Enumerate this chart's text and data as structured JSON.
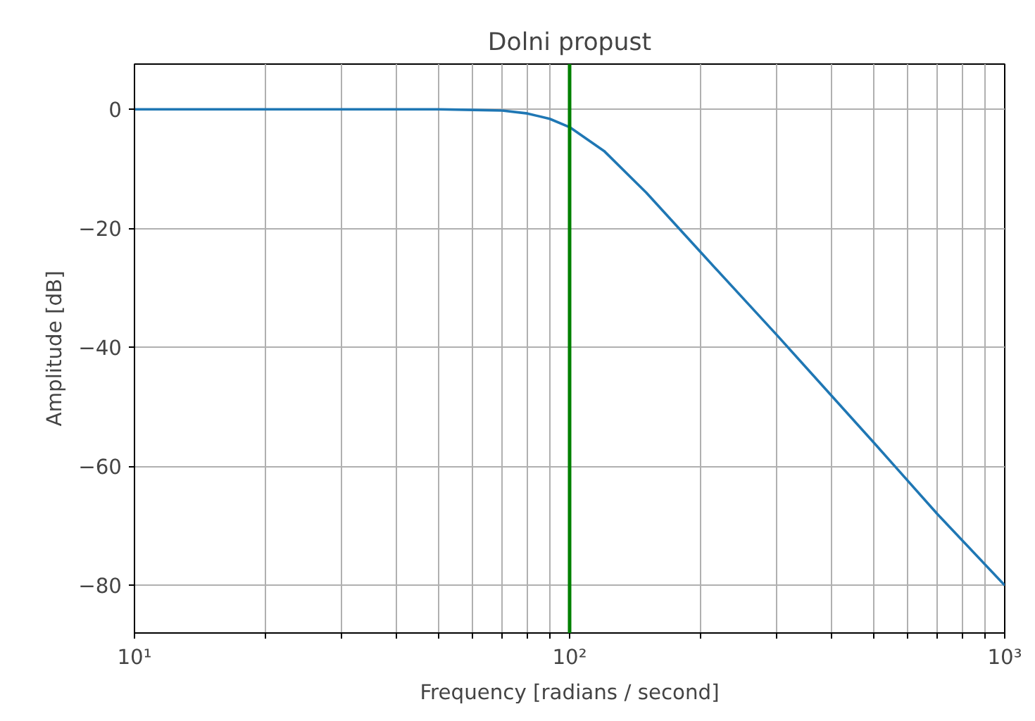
{
  "chart_data": {
    "type": "line",
    "title": "Dolni propust",
    "xlabel": "Frequency [radians / second]",
    "ylabel": "Amplitude [dB]",
    "log": "x",
    "x": [
      10,
      20,
      30,
      40,
      50,
      60,
      70,
      80,
      90,
      100,
      120,
      150,
      200,
      300,
      500,
      700,
      1000
    ],
    "series": [
      {
        "color": "#1f77b4",
        "values": [
          0,
          0,
          0,
          0,
          0,
          -0.1,
          -0.2,
          -0.7,
          -1.6,
          -3,
          -7,
          -14,
          -24,
          -38,
          -56,
          -68,
          -80
        ]
      }
    ],
    "xlim": [
      10,
      1000
    ],
    "ylim": [
      -88,
      7.6
    ],
    "xticks": [
      {
        "value": 10,
        "label": "10¹"
      },
      {
        "value": 20,
        "label": null
      },
      {
        "value": 30,
        "label": null
      },
      {
        "value": 40,
        "label": null
      },
      {
        "value": 50,
        "label": null
      },
      {
        "value": 60,
        "label": null
      },
      {
        "value": 70,
        "label": null
      },
      {
        "value": 80,
        "label": null
      },
      {
        "value": 90,
        "label": null
      },
      {
        "value": 100,
        "label": "10²"
      },
      {
        "value": 200,
        "label": null
      },
      {
        "value": 300,
        "label": null
      },
      {
        "value": 400,
        "label": null
      },
      {
        "value": 500,
        "label": null
      },
      {
        "value": 600,
        "label": null
      },
      {
        "value": 700,
        "label": null
      },
      {
        "value": 800,
        "label": null
      },
      {
        "value": 900,
        "label": null
      },
      {
        "value": 1000,
        "label": "10³"
      }
    ],
    "yticks": [
      0,
      -20,
      -40,
      -60,
      -80
    ],
    "grid": true,
    "marker": "none",
    "line_style": "solid",
    "ref_lines": [
      {
        "axis": "x",
        "value": 100,
        "color": "#008000",
        "line_style": "solid"
      }
    ]
  }
}
